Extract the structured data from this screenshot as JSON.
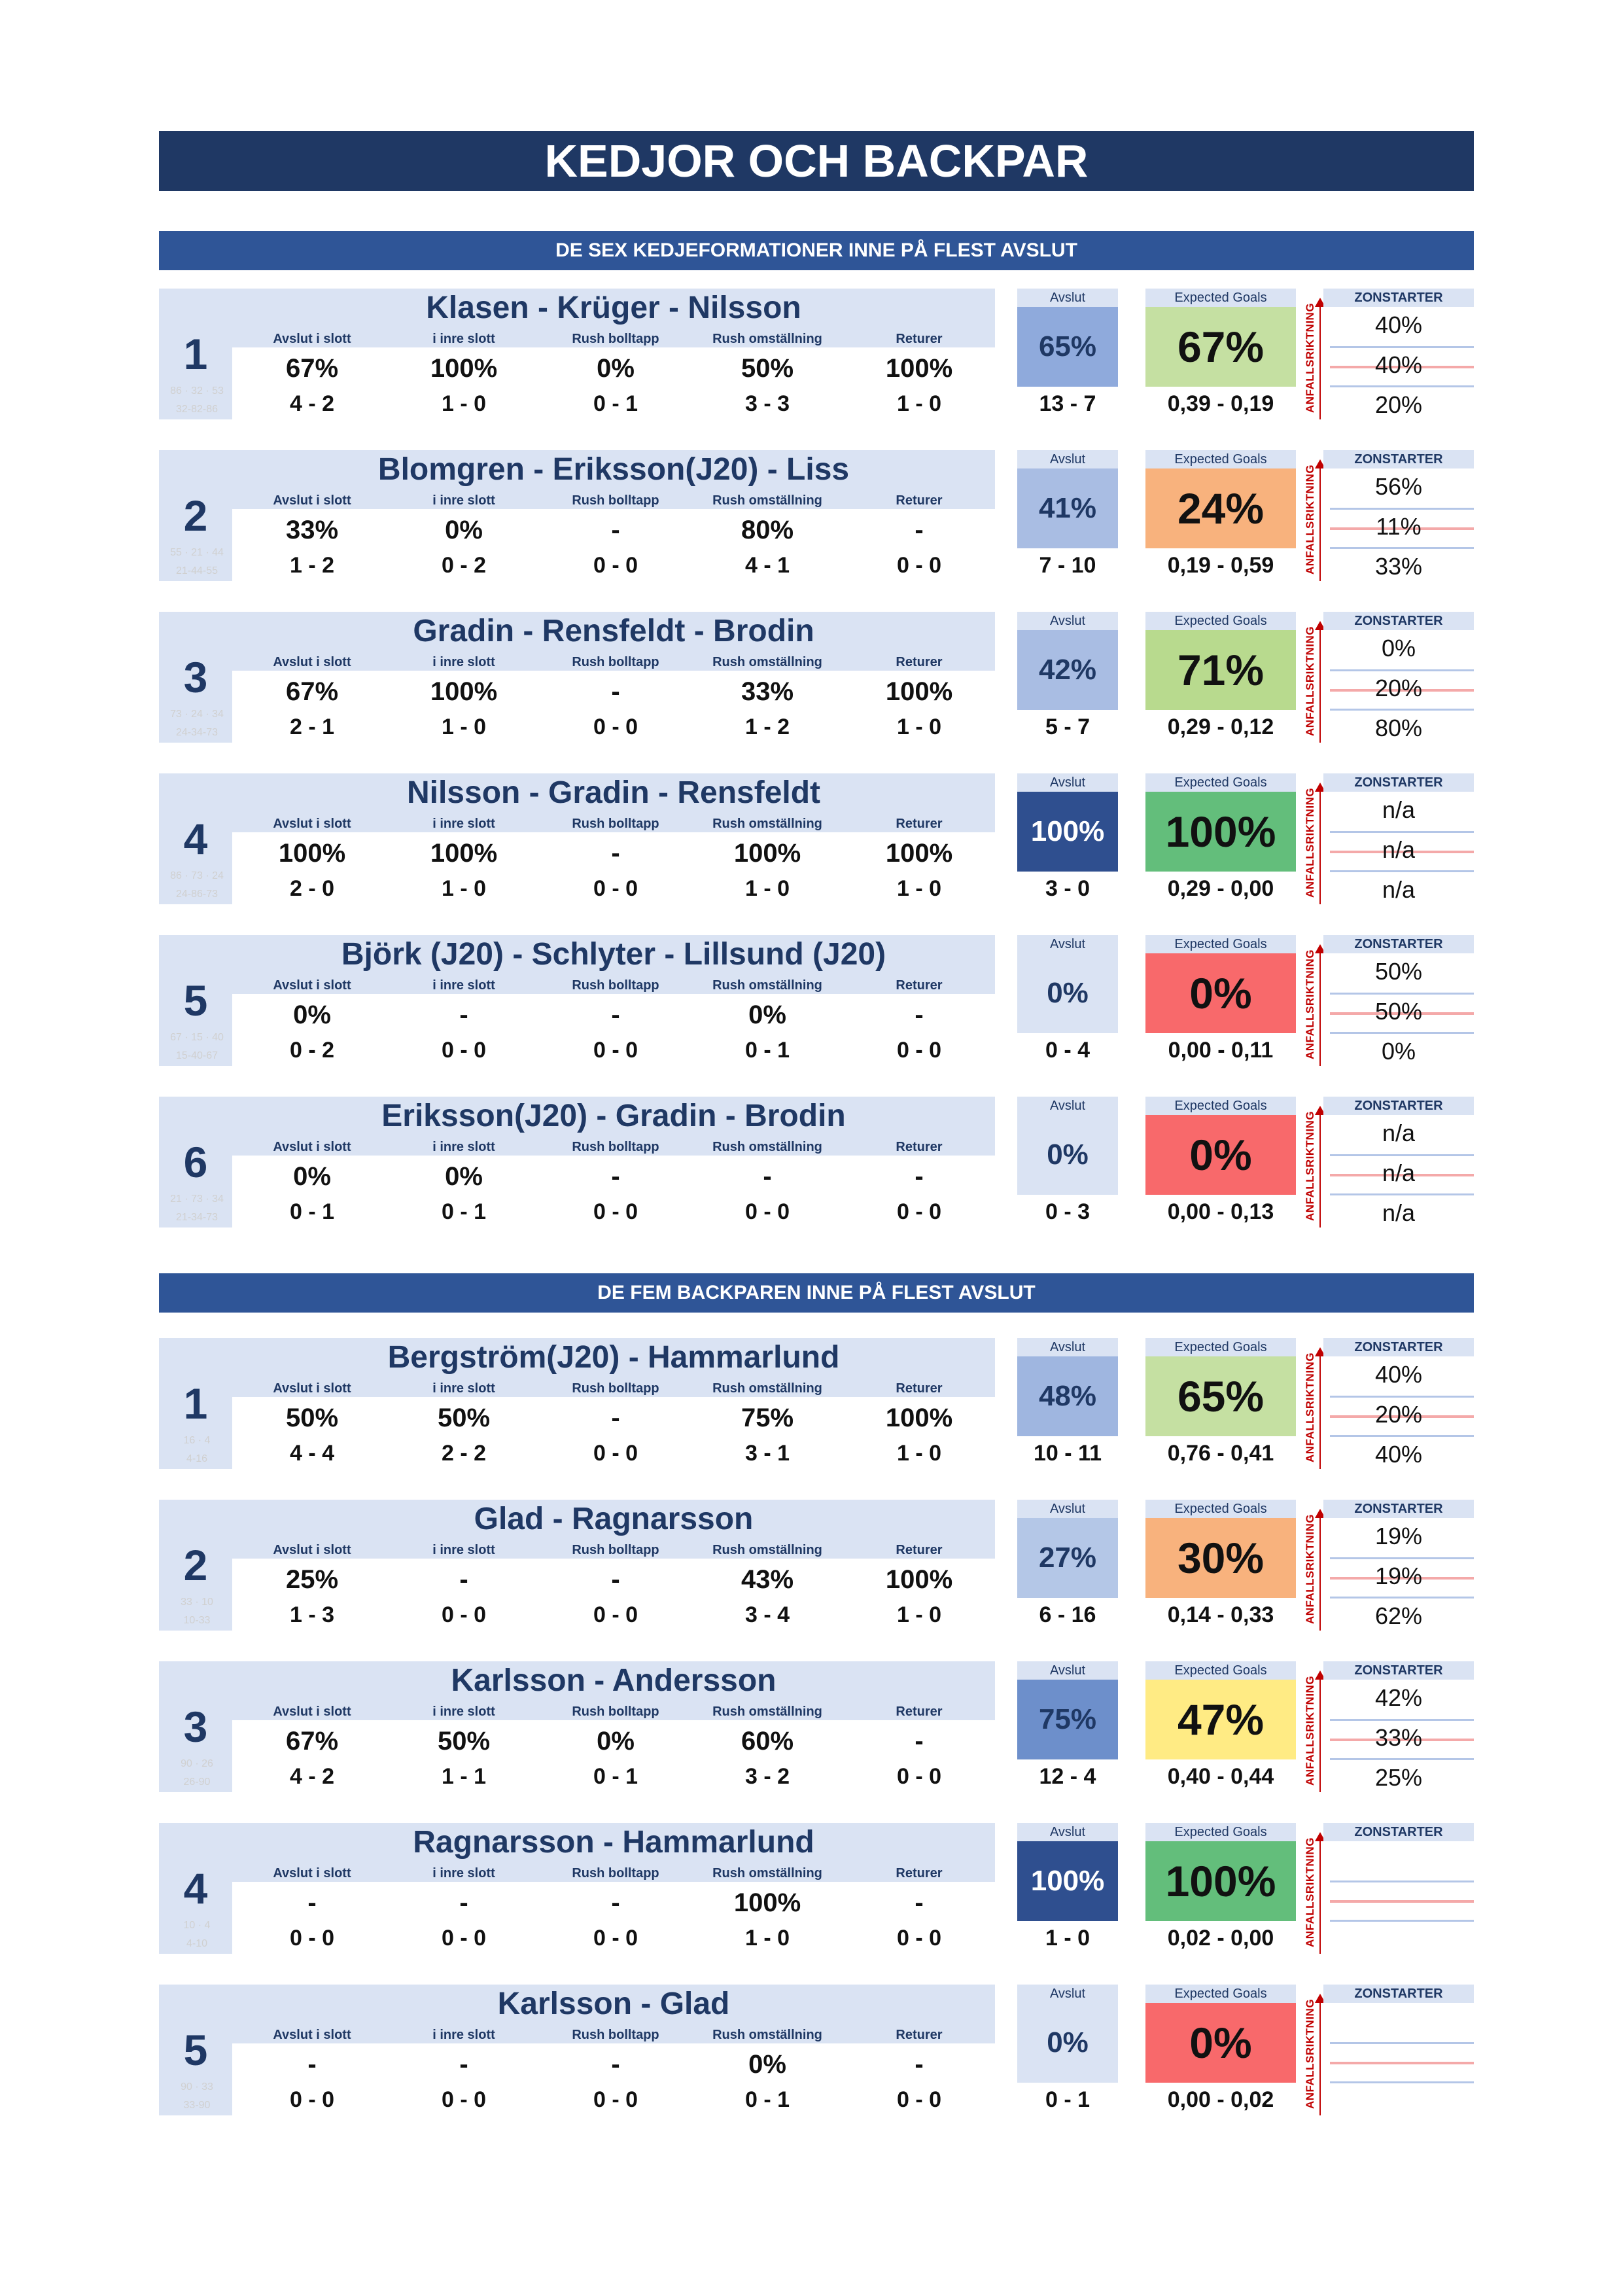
{
  "title": "KEDJOR OCH BACKPAR",
  "column_labels": [
    "Avslut i slott",
    "i inre slott",
    "Rush bolltapp",
    "Rush omställning",
    "Returer"
  ],
  "avslut_label": "Avslut",
  "xg_label": "Expected Goals",
  "direction_label": "ANFALLSRIKTNING",
  "zone_label": "ZONSTARTER",
  "colors": {
    "title_bg": "#1f3864",
    "section_bg": "#2f5597",
    "light_blue": "#dae3f3",
    "accent_red": "#c00000"
  },
  "section1": {
    "title": "DE SEX KEDJEFORMATIONER INNE PÅ FLEST AVSLUT",
    "rows": [
      {
        "rank": "1",
        "names": "Klasen - Krüger - Nilsson",
        "ghost": [
          "86 · 32 · 53",
          "32-82-86"
        ],
        "stats": [
          {
            "pct": "67%",
            "cnt": "4 - 2"
          },
          {
            "pct": "100%",
            "cnt": "1 - 0"
          },
          {
            "pct": "0%",
            "cnt": "0 - 1"
          },
          {
            "pct": "50%",
            "cnt": "3 - 3"
          },
          {
            "pct": "100%",
            "cnt": "1 - 0"
          }
        ],
        "avslut_pct": "65%",
        "avslut_cnt": "13 - 7",
        "avslut_color": "#8faadc",
        "xg_pct": "67%",
        "xg_cnt": "0,39 - 0,19",
        "xg_color": "#c5e0a2",
        "zones": [
          "40%",
          "40%",
          "20%"
        ]
      },
      {
        "rank": "2",
        "names": "Blomgren - Eriksson(J20) - Liss",
        "ghost": [
          "55 · 21 · 44",
          "21-44-55"
        ],
        "stats": [
          {
            "pct": "33%",
            "cnt": "1 - 2"
          },
          {
            "pct": "0%",
            "cnt": "0 - 2"
          },
          {
            "pct": "-",
            "cnt": "0 - 0"
          },
          {
            "pct": "80%",
            "cnt": "4 - 1"
          },
          {
            "pct": "-",
            "cnt": "0 - 0"
          }
        ],
        "avslut_pct": "41%",
        "avslut_cnt": "7 - 10",
        "avslut_color": "#a9bde3",
        "xg_pct": "24%",
        "xg_cnt": "0,19 - 0,59",
        "xg_color": "#f8b27d",
        "zones": [
          "56%",
          "11%",
          "33%"
        ]
      },
      {
        "rank": "3",
        "names": "Gradin - Rensfeldt - Brodin",
        "ghost": [
          "73 · 24 · 34",
          "24-34-73"
        ],
        "stats": [
          {
            "pct": "67%",
            "cnt": "2 - 1"
          },
          {
            "pct": "100%",
            "cnt": "1 - 0"
          },
          {
            "pct": "-",
            "cnt": "0 - 0"
          },
          {
            "pct": "33%",
            "cnt": "1 - 2"
          },
          {
            "pct": "100%",
            "cnt": "1 - 0"
          }
        ],
        "avslut_pct": "42%",
        "avslut_cnt": "5 - 7",
        "avslut_color": "#a9bde3",
        "xg_pct": "71%",
        "xg_cnt": "0,29 - 0,12",
        "xg_color": "#b8da8e",
        "zones": [
          "0%",
          "20%",
          "80%"
        ]
      },
      {
        "rank": "4",
        "names": "Nilsson - Gradin - Rensfeldt",
        "ghost": [
          "86 · 73 · 24",
          "24-86-73"
        ],
        "stats": [
          {
            "pct": "100%",
            "cnt": "2 - 0"
          },
          {
            "pct": "100%",
            "cnt": "1 - 0"
          },
          {
            "pct": "-",
            "cnt": "0 - 0"
          },
          {
            "pct": "100%",
            "cnt": "1 - 0"
          },
          {
            "pct": "100%",
            "cnt": "1 - 0"
          }
        ],
        "avslut_pct": "100%",
        "avslut_cnt": "3 - 0",
        "avslut_color": "#2f4f8f",
        "xg_pct": "100%",
        "xg_cnt": "0,29 - 0,00",
        "xg_color": "#63be7b",
        "zones": [
          "n/a",
          "n/a",
          "n/a"
        ]
      },
      {
        "rank": "5",
        "names": "Björk (J20) - Schlyter - Lillsund (J20)",
        "ghost": [
          "67 · 15 · 40",
          "15-40-67"
        ],
        "stats": [
          {
            "pct": "0%",
            "cnt": "0 - 2"
          },
          {
            "pct": "-",
            "cnt": "0 - 0"
          },
          {
            "pct": "-",
            "cnt": "0 - 0"
          },
          {
            "pct": "0%",
            "cnt": "0 - 1"
          },
          {
            "pct": "-",
            "cnt": "0 - 0"
          }
        ],
        "avslut_pct": "0%",
        "avslut_cnt": "0 - 4",
        "avslut_color": "#dae3f3",
        "xg_pct": "0%",
        "xg_cnt": "0,00 - 0,11",
        "xg_color": "#f8696b",
        "zones": [
          "50%",
          "50%",
          "0%"
        ]
      },
      {
        "rank": "6",
        "names": "Eriksson(J20) - Gradin - Brodin",
        "ghost": [
          "21 · 73 · 34",
          "21-34-73"
        ],
        "stats": [
          {
            "pct": "0%",
            "cnt": "0 - 1"
          },
          {
            "pct": "0%",
            "cnt": "0 - 1"
          },
          {
            "pct": "-",
            "cnt": "0 - 0"
          },
          {
            "pct": "-",
            "cnt": "0 - 0"
          },
          {
            "pct": "-",
            "cnt": "0 - 0"
          }
        ],
        "avslut_pct": "0%",
        "avslut_cnt": "0 - 3",
        "avslut_color": "#dae3f3",
        "xg_pct": "0%",
        "xg_cnt": "0,00 - 0,13",
        "xg_color": "#f8696b",
        "zones": [
          "n/a",
          "n/a",
          "n/a"
        ]
      }
    ]
  },
  "section2": {
    "title": "DE FEM BACKPAREN INNE PÅ FLEST AVSLUT",
    "rows": [
      {
        "rank": "1",
        "names": "Bergström(J20) - Hammarlund",
        "ghost": [
          "16 · 4",
          "4-16"
        ],
        "stats": [
          {
            "pct": "50%",
            "cnt": "4 - 4"
          },
          {
            "pct": "50%",
            "cnt": "2 - 2"
          },
          {
            "pct": "-",
            "cnt": "0 - 0"
          },
          {
            "pct": "75%",
            "cnt": "3 - 1"
          },
          {
            "pct": "100%",
            "cnt": "1 - 0"
          }
        ],
        "avslut_pct": "48%",
        "avslut_cnt": "10 - 11",
        "avslut_color": "#9fb6e0",
        "xg_pct": "65%",
        "xg_cnt": "0,76 - 0,41",
        "xg_color": "#c5e0a2",
        "zones": [
          "40%",
          "20%",
          "40%"
        ]
      },
      {
        "rank": "2",
        "names": "Glad - Ragnarsson",
        "ghost": [
          "33 · 10",
          "10-33"
        ],
        "stats": [
          {
            "pct": "25%",
            "cnt": "1 - 3"
          },
          {
            "pct": "-",
            "cnt": "0 - 0"
          },
          {
            "pct": "-",
            "cnt": "0 - 0"
          },
          {
            "pct": "43%",
            "cnt": "3 - 4"
          },
          {
            "pct": "100%",
            "cnt": "1 - 0"
          }
        ],
        "avslut_pct": "27%",
        "avslut_cnt": "6 - 16",
        "avslut_color": "#b4c7e7",
        "xg_pct": "30%",
        "xg_cnt": "0,14 - 0,33",
        "xg_color": "#f8b27d",
        "zones": [
          "19%",
          "19%",
          "62%"
        ]
      },
      {
        "rank": "3",
        "names": "Karlsson - Andersson",
        "ghost": [
          "90 · 26",
          "26-90"
        ],
        "stats": [
          {
            "pct": "67%",
            "cnt": "4 - 2"
          },
          {
            "pct": "50%",
            "cnt": "1 - 1"
          },
          {
            "pct": "0%",
            "cnt": "0 - 1"
          },
          {
            "pct": "60%",
            "cnt": "3 - 2"
          },
          {
            "pct": "-",
            "cnt": "0 - 0"
          }
        ],
        "avslut_pct": "75%",
        "avslut_cnt": "12 - 4",
        "avslut_color": "#6d8fcb",
        "xg_pct": "47%",
        "xg_cnt": "0,40 - 0,44",
        "xg_color": "#ffeb84",
        "zones": [
          "42%",
          "33%",
          "25%"
        ]
      },
      {
        "rank": "4",
        "names": "Ragnarsson - Hammarlund",
        "ghost": [
          "10 · 4",
          "4-10"
        ],
        "stats": [
          {
            "pct": "-",
            "cnt": "0 - 0"
          },
          {
            "pct": "-",
            "cnt": "0 - 0"
          },
          {
            "pct": "-",
            "cnt": "0 - 0"
          },
          {
            "pct": "100%",
            "cnt": "1 - 0"
          },
          {
            "pct": "-",
            "cnt": "0 - 0"
          }
        ],
        "avslut_pct": "100%",
        "avslut_cnt": "1 - 0",
        "avslut_color": "#2f4f8f",
        "xg_pct": "100%",
        "xg_cnt": "0,02 - 0,00",
        "xg_color": "#63be7b",
        "zones": [
          "",
          "",
          ""
        ]
      },
      {
        "rank": "5",
        "names": "Karlsson - Glad",
        "ghost": [
          "90 · 33",
          "33-90"
        ],
        "stats": [
          {
            "pct": "-",
            "cnt": "0 - 0"
          },
          {
            "pct": "-",
            "cnt": "0 - 0"
          },
          {
            "pct": "-",
            "cnt": "0 - 0"
          },
          {
            "pct": "0%",
            "cnt": "0 - 1"
          },
          {
            "pct": "-",
            "cnt": "0 - 0"
          }
        ],
        "avslut_pct": "0%",
        "avslut_cnt": "0 - 1",
        "avslut_color": "#dae3f3",
        "xg_pct": "0%",
        "xg_cnt": "0,00 - 0,02",
        "xg_color": "#f8696b",
        "zones": [
          "",
          "",
          ""
        ]
      }
    ]
  }
}
